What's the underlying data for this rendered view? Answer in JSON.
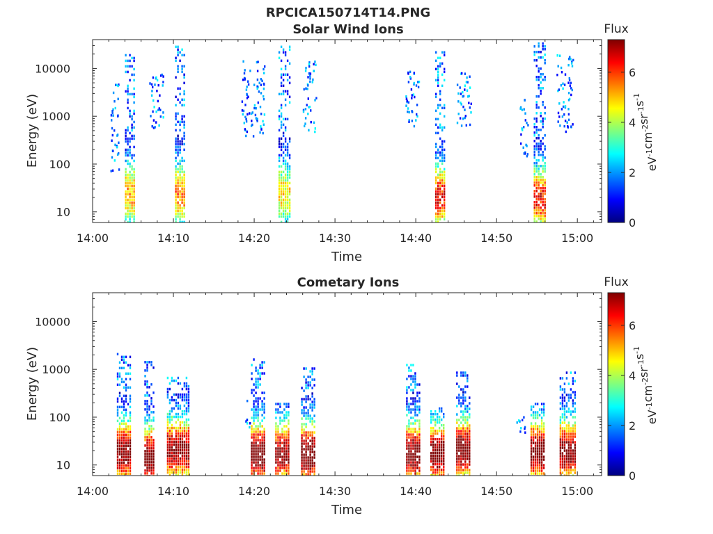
{
  "figure_title": "RPCICA150714T14.PNG",
  "colormap_stops": [
    "#00007f",
    "#0000ff",
    "#007fff",
    "#00ffff",
    "#7fff7f",
    "#ffff00",
    "#ff7f00",
    "#ff0000",
    "#7f0000"
  ],
  "chart_data": [
    {
      "type": "heatmap",
      "title": "Solar Wind Ions",
      "xlabel": "Time",
      "ylabel": "Energy (eV)",
      "yscale": "log",
      "ylim": [
        6,
        40000
      ],
      "xlim_minutes": [
        0,
        63
      ],
      "x_tick_labels": [
        "14:00",
        "14:10",
        "14:20",
        "14:30",
        "14:40",
        "14:50",
        "15:00"
      ],
      "x_tick_minutes": [
        0,
        10,
        20,
        30,
        40,
        50,
        60
      ],
      "y_tick_labels": [
        "10",
        "100",
        "1000",
        "10000"
      ],
      "y_tick_values": [
        10,
        100,
        1000,
        10000
      ],
      "colorbar": {
        "label": "Flux",
        "units": "eV-1cm-2sr-1s-1",
        "range": [
          0,
          7.3
        ],
        "tick_labels": [
          "0",
          "2",
          "4",
          "6"
        ],
        "tick_values": [
          0,
          2,
          4,
          6
        ]
      },
      "bursts": [
        {
          "t_start": 4.0,
          "t_end": 5.2,
          "e_min": 6,
          "e_max": 20000,
          "peak_flux": 4.5,
          "low_energy_peak": 25
        },
        {
          "t_start": 10.2,
          "t_end": 11.4,
          "e_min": 6,
          "e_max": 30000,
          "peak_flux": 4.8,
          "low_energy_peak": 25
        },
        {
          "t_start": 23.0,
          "t_end": 24.4,
          "e_min": 6,
          "e_max": 30000,
          "peak_flux": 4.0,
          "low_energy_peak": 25
        },
        {
          "t_start": 42.4,
          "t_end": 43.6,
          "e_min": 6,
          "e_max": 30000,
          "peak_flux": 5.6,
          "low_energy_peak": 22
        },
        {
          "t_start": 54.6,
          "t_end": 56.0,
          "e_min": 6,
          "e_max": 35000,
          "peak_flux": 5.6,
          "low_energy_peak": 20
        }
      ],
      "scatter_clusters": [
        {
          "t_start": 2.2,
          "t_end": 3.2,
          "e_min": 60,
          "e_max": 6000
        },
        {
          "t_start": 7.0,
          "t_end": 8.8,
          "e_min": 600,
          "e_max": 8000
        },
        {
          "t_start": 18.4,
          "t_end": 21.2,
          "e_min": 400,
          "e_max": 15000
        },
        {
          "t_start": 26.0,
          "t_end": 27.6,
          "e_min": 500,
          "e_max": 15000
        },
        {
          "t_start": 38.6,
          "t_end": 40.4,
          "e_min": 600,
          "e_max": 9000
        },
        {
          "t_start": 45.0,
          "t_end": 46.8,
          "e_min": 600,
          "e_max": 9000
        },
        {
          "t_start": 52.8,
          "t_end": 53.8,
          "e_min": 150,
          "e_max": 3000
        },
        {
          "t_start": 57.4,
          "t_end": 59.4,
          "e_min": 500,
          "e_max": 20000
        }
      ]
    },
    {
      "type": "heatmap",
      "title": "Cometary Ions",
      "xlabel": "Time",
      "ylabel": "Energy (eV)",
      "yscale": "log",
      "ylim": [
        6,
        40000
      ],
      "xlim_minutes": [
        0,
        63
      ],
      "x_tick_labels": [
        "14:00",
        "14:10",
        "14:20",
        "14:30",
        "14:40",
        "14:50",
        "15:00"
      ],
      "x_tick_minutes": [
        0,
        10,
        20,
        30,
        40,
        50,
        60
      ],
      "y_tick_labels": [
        "10",
        "100",
        "1000",
        "10000"
      ],
      "y_tick_values": [
        10,
        100,
        1000,
        10000
      ],
      "colorbar": {
        "label": "Flux",
        "units": "eV-1cm-2sr-1s-1",
        "range": [
          0,
          7.3
        ],
        "tick_labels": [
          "0",
          "2",
          "4",
          "6"
        ],
        "tick_values": [
          0,
          2,
          4,
          6
        ]
      },
      "bursts": [
        {
          "t_start": 3.0,
          "t_end": 4.8,
          "e_min": 6,
          "e_max": 2200,
          "peak_flux": 6.8,
          "low_energy_peak": 20
        },
        {
          "t_start": 6.4,
          "t_end": 7.6,
          "e_min": 6,
          "e_max": 1500,
          "peak_flux": 7.0,
          "low_energy_peak": 15
        },
        {
          "t_start": 9.2,
          "t_end": 11.8,
          "e_min": 6,
          "e_max": 700,
          "peak_flux": 6.6,
          "low_energy_peak": 22
        },
        {
          "t_start": 19.6,
          "t_end": 21.2,
          "e_min": 6,
          "e_max": 1700,
          "peak_flux": 7.2,
          "low_energy_peak": 18
        },
        {
          "t_start": 22.6,
          "t_end": 24.2,
          "e_min": 6,
          "e_max": 200,
          "peak_flux": 6.5,
          "low_energy_peak": 18
        },
        {
          "t_start": 25.8,
          "t_end": 27.6,
          "e_min": 6,
          "e_max": 1100,
          "peak_flux": 7.1,
          "low_energy_peak": 18
        },
        {
          "t_start": 38.8,
          "t_end": 40.4,
          "e_min": 6,
          "e_max": 1300,
          "peak_flux": 7.0,
          "low_energy_peak": 18
        },
        {
          "t_start": 41.8,
          "t_end": 43.4,
          "e_min": 6,
          "e_max": 160,
          "peak_flux": 6.8,
          "low_energy_peak": 18
        },
        {
          "t_start": 45.0,
          "t_end": 46.8,
          "e_min": 6,
          "e_max": 900,
          "peak_flux": 6.9,
          "low_energy_peak": 22
        },
        {
          "t_start": 54.2,
          "t_end": 56.0,
          "e_min": 6,
          "e_max": 200,
          "peak_flux": 6.9,
          "low_energy_peak": 20
        },
        {
          "t_start": 57.8,
          "t_end": 59.8,
          "e_min": 6,
          "e_max": 900,
          "peak_flux": 6.8,
          "low_energy_peak": 20
        }
      ],
      "scatter_clusters": [
        {
          "t_start": 18.8,
          "t_end": 19.4,
          "e_min": 60,
          "e_max": 300
        },
        {
          "t_start": 52.4,
          "t_end": 53.6,
          "e_min": 40,
          "e_max": 120
        }
      ]
    }
  ]
}
